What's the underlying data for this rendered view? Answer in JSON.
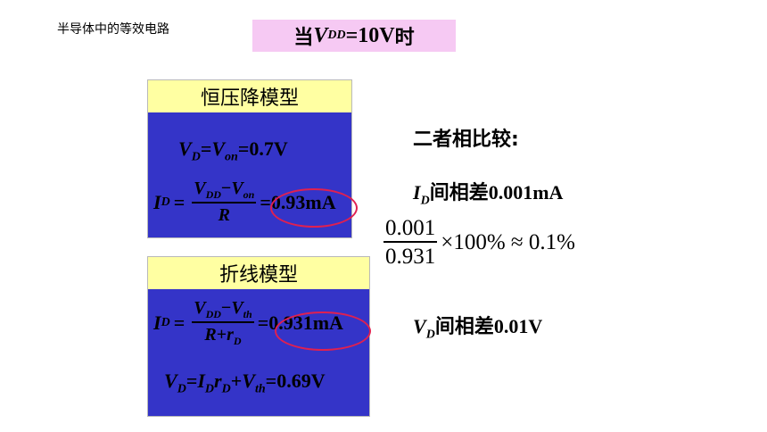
{
  "header": {
    "subtitle": "半导体中的等效电路",
    "title": {
      "prefix": "当",
      "var": "V",
      "var_sub": "DD",
      "suffix": "=10V",
      "suffix_cn": "时"
    }
  },
  "panel1": {
    "heading": "恒压降模型",
    "eq1": {
      "v": "V",
      "v_sub": "D",
      "eq": "=",
      "von": "V",
      "von_sub": "on",
      "value": "=0.7V"
    },
    "eq2": {
      "lhs": "I",
      "lhs_sub": "D",
      "eq": "=",
      "num_a": "V",
      "num_a_sub": "DD",
      "minus": "−",
      "num_b": "V",
      "num_b_sub": "on",
      "den": "R",
      "result": "=0.93mA"
    }
  },
  "panel2": {
    "heading": "折线模型",
    "eq1": {
      "lhs": "I",
      "lhs_sub": "D",
      "eq": "=",
      "num_a": "V",
      "num_a_sub": "DD",
      "minus": "−",
      "num_b": "V",
      "num_b_sub": "th",
      "den_a": "R",
      "den_plus": "+",
      "den_b": "r",
      "den_b_sub": "D",
      "result": "=0.931mA"
    },
    "eq2": {
      "a": "V",
      "a_sub": "D",
      "eq": "=",
      "b": "I",
      "b_sub": "D",
      "c": "r",
      "c_sub": "D",
      "plus": "+",
      "d": "V",
      "d_sub": "th",
      "value": "=0.69V"
    }
  },
  "compare": {
    "heading": "二者相比较:",
    "id_line": {
      "var": "I",
      "var_sub": "D",
      "text": "间相差",
      "value": "0.001mA"
    },
    "ratio": {
      "numerator": "0.001",
      "denominator": "0.931",
      "rest": "×100% ≈ 0.1%"
    },
    "vd_line": {
      "var": "V",
      "var_sub": "D",
      "text": "间相差",
      "value": "0.01V"
    }
  },
  "colors": {
    "title_bg": "#f6c9f3",
    "panel_head_bg": "#ffffa2",
    "panel_body_bg": "#3434c8",
    "ellipse": "#e02050"
  }
}
